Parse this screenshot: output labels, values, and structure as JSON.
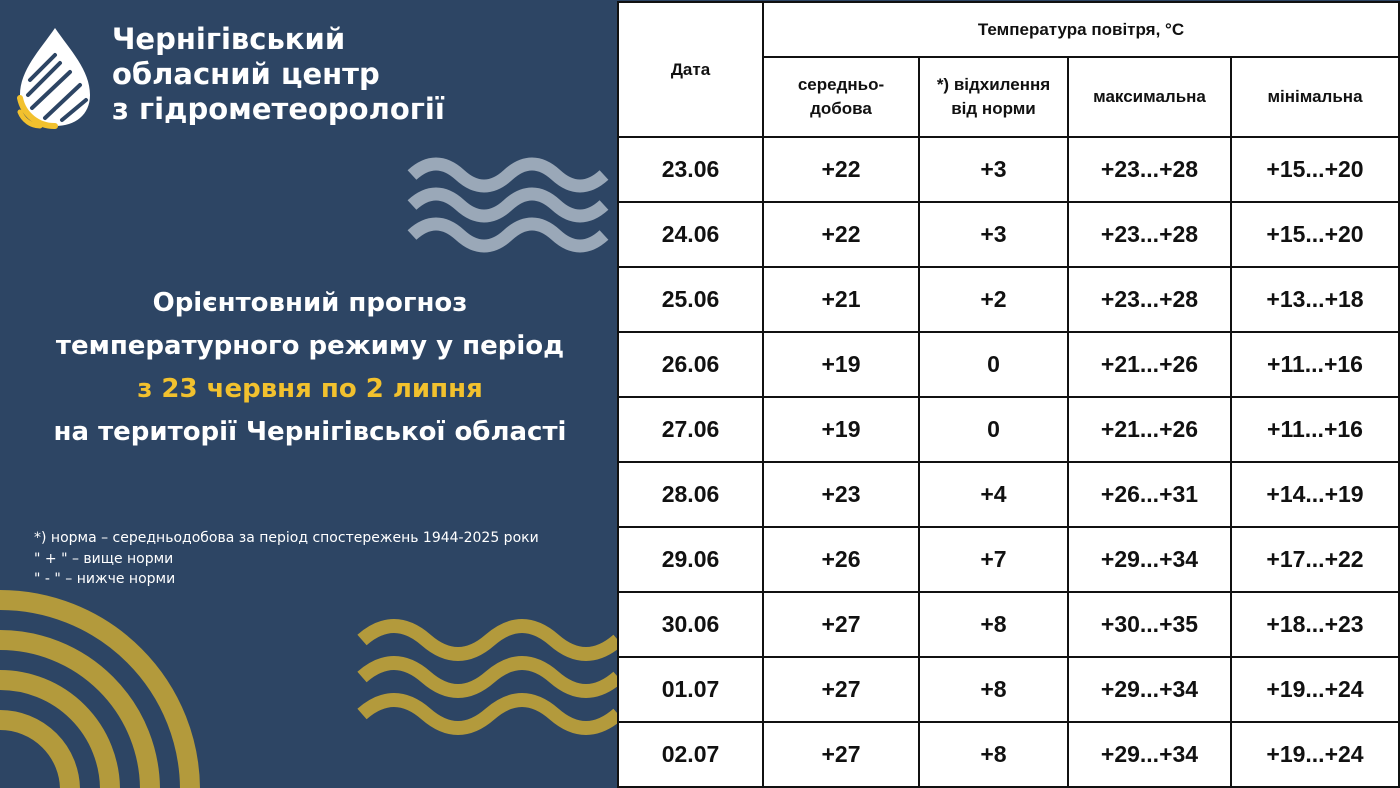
{
  "header": {
    "org_name": [
      "Чернігівський",
      "обласний центр",
      "з гідрометеорології"
    ]
  },
  "title": {
    "lines": [
      "Орієнтовний прогноз",
      "температурного режиму у період",
      "з 23 червня по 2 липня",
      "на території Чернігівської області"
    ]
  },
  "notes": [
    "*) норма – середньодобова за період спостережень 1944-2025 роки",
    "\" + \" – вище норми",
    "\" - \" – нижче норми"
  ],
  "table": {
    "date_header": "Дата",
    "group_header": "Температура повітря, °С",
    "columns": [
      "середньо-\nдобова",
      "*) відхилення\nвід норми",
      "максимальна",
      "мінімальна"
    ],
    "rows": [
      [
        "23.06",
        "+22",
        "+3",
        "+23...+28",
        "+15...+20"
      ],
      [
        "24.06",
        "+22",
        "+3",
        "+23...+28",
        "+15...+20"
      ],
      [
        "25.06",
        "+21",
        "+2",
        "+23...+28",
        "+13...+18"
      ],
      [
        "26.06",
        "+19",
        "0",
        "+21...+26",
        "+11...+16"
      ],
      [
        "27.06",
        "+19",
        "0",
        "+21...+26",
        "+11...+16"
      ],
      [
        "28.06",
        "+23",
        "+4",
        "+26...+31",
        "+14...+19"
      ],
      [
        "29.06",
        "+26",
        "+7",
        "+29...+34",
        "+17...+22"
      ],
      [
        "30.06",
        "+27",
        "+8",
        "+30...+35",
        "+18...+23"
      ],
      [
        "01.07",
        "+27",
        "+8",
        "+29...+34",
        "+19...+24"
      ],
      [
        "02.07",
        "+27",
        "+8",
        "+29...+34",
        "+19...+24"
      ]
    ]
  }
}
